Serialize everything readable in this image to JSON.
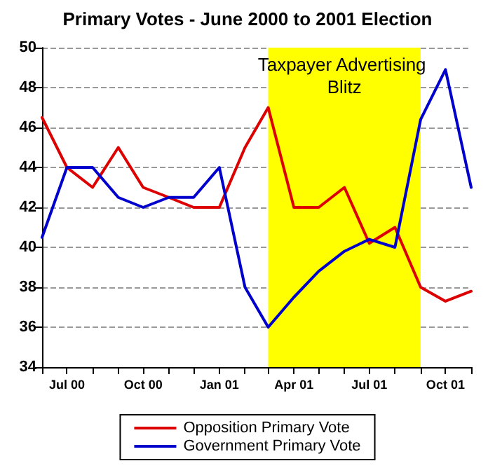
{
  "chart_data": {
    "type": "line",
    "title": "Primary Votes - June 2000 to 2001 Election",
    "x": [
      "2000-06",
      "2000-07",
      "2000-08",
      "2000-09",
      "2000-10",
      "2000-11",
      "2000-12",
      "2001-01",
      "2001-02",
      "2001-03",
      "2001-04",
      "2001-05",
      "2001-06",
      "2001-07",
      "2001-08",
      "2001-09",
      "2001-10",
      "2001-11"
    ],
    "series": [
      {
        "name": "Opposition Primary Vote",
        "color": "#dd0000",
        "values": [
          46.5,
          44,
          43,
          45,
          43,
          42.5,
          42,
          42,
          45,
          47,
          42,
          42,
          43,
          40.2,
          41,
          38,
          37.3,
          37.8
        ]
      },
      {
        "name": "Government Primary Vote",
        "color": "#0000cc",
        "values": [
          40.5,
          44,
          44,
          42.5,
          42,
          42.5,
          42.5,
          44,
          38,
          36,
          37.5,
          38.8,
          39.8,
          40.4,
          40,
          46.4,
          48.9,
          43
        ]
      }
    ],
    "xlim": [
      "2000-06",
      "2001-11"
    ],
    "xticks": [
      {
        "value": "2000-06",
        "label": null
      },
      {
        "value": "2000-07",
        "label": "Jul 00"
      },
      {
        "value": "2000-08",
        "label": null
      },
      {
        "value": "2000-09",
        "label": null
      },
      {
        "value": "2000-10",
        "label": "Oct 00"
      },
      {
        "value": "2000-11",
        "label": null
      },
      {
        "value": "2000-12",
        "label": null
      },
      {
        "value": "2001-01",
        "label": "Jan 01"
      },
      {
        "value": "2001-02",
        "label": null
      },
      {
        "value": "2001-03",
        "label": null
      },
      {
        "value": "2001-04",
        "label": "Apr 01"
      },
      {
        "value": "2001-05",
        "label": null
      },
      {
        "value": "2001-06",
        "label": null
      },
      {
        "value": "2001-07",
        "label": "Jul 01"
      },
      {
        "value": "2001-08",
        "label": null
      },
      {
        "value": "2001-09",
        "label": null
      },
      {
        "value": "2001-10",
        "label": "Oct 01"
      },
      {
        "value": "2001-11",
        "label": null
      }
    ],
    "ylim": [
      34,
      50
    ],
    "yticks": [
      34,
      36,
      38,
      40,
      42,
      44,
      46,
      48,
      50
    ],
    "bands": [
      {
        "axis": "x",
        "from": "2001-03",
        "to": "2001-09",
        "label": "Taxpayer Advertising Blitz",
        "color": "#ffff00"
      }
    ],
    "grid": "y",
    "legend": "bottom",
    "marker": "none",
    "line_style": "solid"
  }
}
